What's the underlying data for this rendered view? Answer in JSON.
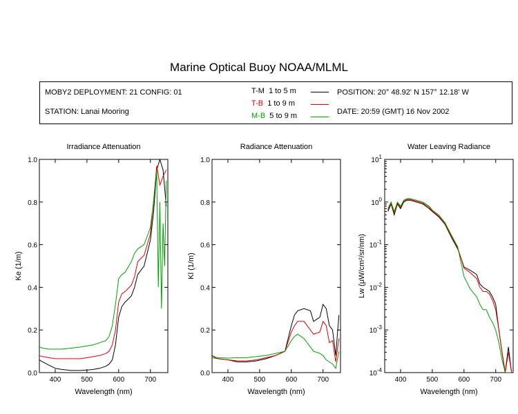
{
  "title": "Marine Optical Buoy NOAA/MLML",
  "info": {
    "deployment": "MOBY2 DEPLOYMENT: 21 CONFIG: 01",
    "station": "STATION: Lanai Mooring",
    "position": "POSITION: 20° 48.92' N   157° 12.18' W",
    "date": "DATE: 20:59 (GMT) 16 Nov 2002",
    "legend": [
      {
        "code": "T-M",
        "range": "1 to 5  m",
        "color": "#000000"
      },
      {
        "code": "T-B",
        "range": "1 to 9  m",
        "color": "#e00000"
      },
      {
        "code": "M-B",
        "range": "5 to 9  m",
        "color": "#00a000"
      }
    ]
  },
  "chart_data": [
    {
      "type": "line",
      "title": "Irradiance Attenuation",
      "xlabel": "Wavelength (nm)",
      "ylabel": "Ke  (1/m)",
      "xlim": [
        350,
        755
      ],
      "ylim": [
        0,
        1.0
      ],
      "xticks": [
        400,
        500,
        600,
        700
      ],
      "yticks": [
        0,
        0.2,
        0.4,
        0.6,
        0.8,
        1.0
      ],
      "ytick_labels": [
        "0.0",
        "0.2",
        "0.4",
        "0.6",
        "0.8",
        "1.0"
      ],
      "series": [
        {
          "name": "T-M",
          "color": "#000000",
          "x": [
            350,
            360,
            380,
            400,
            420,
            450,
            480,
            500,
            520,
            540,
            560,
            570,
            580,
            590,
            600,
            610,
            620,
            640,
            650,
            660,
            680,
            700,
            710,
            720,
            730,
            740,
            750
          ],
          "y": [
            0.06,
            0.05,
            0.035,
            0.02,
            0.015,
            0.01,
            0.01,
            0.012,
            0.015,
            0.02,
            0.03,
            0.04,
            0.06,
            0.13,
            0.26,
            0.31,
            0.33,
            0.36,
            0.4,
            0.46,
            0.5,
            0.62,
            0.75,
            0.95,
            1.0,
            0.95,
            0.78
          ]
        },
        {
          "name": "T-B",
          "color": "#e00000",
          "x": [
            350,
            360,
            380,
            400,
            420,
            450,
            480,
            500,
            520,
            540,
            560,
            570,
            580,
            590,
            600,
            610,
            620,
            640,
            650,
            660,
            680,
            700,
            710,
            720,
            730,
            740,
            750
          ],
          "y": [
            0.08,
            0.075,
            0.07,
            0.065,
            0.065,
            0.065,
            0.065,
            0.07,
            0.075,
            0.08,
            0.09,
            0.1,
            0.13,
            0.2,
            0.33,
            0.37,
            0.38,
            0.41,
            0.45,
            0.52,
            0.55,
            0.65,
            0.8,
            0.97,
            0.88,
            0.92,
            0.95
          ]
        },
        {
          "name": "M-B",
          "color": "#00a000",
          "x": [
            350,
            360,
            380,
            400,
            420,
            450,
            480,
            500,
            520,
            540,
            560,
            570,
            580,
            590,
            600,
            610,
            620,
            640,
            650,
            660,
            680,
            700,
            710,
            720,
            725,
            730,
            735,
            740,
            745,
            750
          ],
          "y": [
            0.12,
            0.115,
            0.11,
            0.11,
            0.11,
            0.115,
            0.12,
            0.125,
            0.13,
            0.14,
            0.15,
            0.17,
            0.22,
            0.32,
            0.44,
            0.46,
            0.47,
            0.52,
            0.56,
            0.58,
            0.6,
            0.68,
            0.8,
            0.95,
            0.4,
            0.8,
            0.3,
            0.7,
            0.5,
            0.9
          ]
        }
      ]
    },
    {
      "type": "line",
      "title": "Radiance Attenuation",
      "xlabel": "Wavelength (nm)",
      "ylabel": "Kl  (1/m)",
      "xlim": [
        350,
        755
      ],
      "ylim": [
        0,
        1.0
      ],
      "xticks": [
        400,
        500,
        600,
        700
      ],
      "yticks": [
        0,
        0.2,
        0.4,
        0.6,
        0.8,
        1.0
      ],
      "ytick_labels": [
        "0.0",
        "0.2",
        "0.4",
        "0.6",
        "0.8",
        "1.0"
      ],
      "series": [
        {
          "name": "T-M",
          "color": "#000000",
          "x": [
            350,
            370,
            400,
            430,
            460,
            490,
            520,
            550,
            580,
            600,
            610,
            620,
            640,
            660,
            670,
            690,
            700,
            710,
            720,
            730,
            740,
            750
          ],
          "y": [
            0.08,
            0.065,
            0.06,
            0.05,
            0.05,
            0.055,
            0.065,
            0.08,
            0.1,
            0.22,
            0.27,
            0.29,
            0.3,
            0.29,
            0.24,
            0.26,
            0.32,
            0.3,
            0.22,
            0.2,
            0.08,
            0.27
          ]
        },
        {
          "name": "T-B",
          "color": "#e00000",
          "x": [
            350,
            370,
            400,
            430,
            460,
            490,
            520,
            550,
            580,
            600,
            610,
            620,
            640,
            660,
            670,
            690,
            700,
            710,
            720,
            730,
            740,
            750
          ],
          "y": [
            0.07,
            0.065,
            0.06,
            0.055,
            0.055,
            0.06,
            0.07,
            0.08,
            0.1,
            0.19,
            0.22,
            0.24,
            0.24,
            0.2,
            0.18,
            0.19,
            0.24,
            0.22,
            0.14,
            0.15,
            0.05,
            0.16
          ]
        },
        {
          "name": "M-B",
          "color": "#00a000",
          "x": [
            350,
            370,
            400,
            430,
            460,
            490,
            520,
            550,
            580,
            600,
            610,
            620,
            640,
            660,
            670,
            690,
            700,
            710,
            720,
            730,
            740,
            750
          ],
          "y": [
            0.07,
            0.07,
            0.068,
            0.07,
            0.07,
            0.075,
            0.08,
            0.09,
            0.1,
            0.15,
            0.17,
            0.18,
            0.16,
            0.12,
            0.1,
            0.09,
            0.08,
            0.06,
            0.05,
            0.04,
            0.02,
            0.1
          ]
        }
      ]
    },
    {
      "type": "line",
      "title": "Water Leaving Radiance",
      "xlabel": "Wavelength (nm)",
      "ylabel": "Lw  (μW/cm²/sr/nm)",
      "xlim": [
        350,
        755
      ],
      "ylim": [
        0.0001,
        10
      ],
      "yscale": "log",
      "xticks": [
        400,
        500,
        600,
        700
      ],
      "ytick_exponents": [
        "1",
        "0",
        "-1",
        "-2",
        "-3",
        "-4"
      ],
      "series": [
        {
          "name": "T-M",
          "color": "#000000",
          "x": [
            360,
            370,
            380,
            390,
            400,
            410,
            420,
            430,
            450,
            470,
            490,
            500,
            520,
            540,
            560,
            580,
            590,
            600,
            620,
            640,
            650,
            660,
            670,
            680,
            690,
            700,
            710,
            720,
            730,
            740,
            750
          ],
          "y": [
            0.6,
            0.9,
            0.5,
            0.9,
            0.7,
            1.0,
            1.1,
            1.1,
            1.0,
            0.9,
            0.7,
            0.6,
            0.45,
            0.3,
            0.15,
            0.08,
            0.05,
            0.03,
            0.025,
            0.02,
            0.012,
            0.01,
            0.009,
            0.008,
            0.006,
            0.004,
            0.001,
            0.0003,
            0.0001,
            0.0004,
            0.0001
          ]
        },
        {
          "name": "T-B",
          "color": "#e00000",
          "x": [
            360,
            370,
            380,
            390,
            400,
            410,
            420,
            430,
            450,
            470,
            490,
            500,
            520,
            540,
            560,
            580,
            590,
            600,
            620,
            640,
            650,
            660,
            670,
            680,
            690,
            700,
            710,
            720,
            730,
            740,
            750
          ],
          "y": [
            0.65,
            0.95,
            0.55,
            0.95,
            0.75,
            1.05,
            1.15,
            1.15,
            1.05,
            0.95,
            0.75,
            0.62,
            0.47,
            0.31,
            0.16,
            0.085,
            0.05,
            0.028,
            0.022,
            0.016,
            0.01,
            0.008,
            0.008,
            0.007,
            0.005,
            0.003,
            0.001,
            0.0003,
            0.0001,
            0.0003,
            0.0001
          ]
        },
        {
          "name": "M-B",
          "color": "#00a000",
          "x": [
            360,
            370,
            380,
            390,
            400,
            410,
            420,
            430,
            450,
            470,
            490,
            500,
            520,
            540,
            560,
            580,
            590,
            600,
            620,
            640,
            650,
            660,
            670,
            680,
            690,
            700,
            710,
            720,
            730,
            740,
            750
          ],
          "y": [
            0.7,
            1.0,
            0.6,
            1.0,
            0.8,
            1.1,
            1.2,
            1.2,
            1.1,
            1.0,
            0.8,
            0.65,
            0.5,
            0.33,
            0.17,
            0.09,
            0.04,
            0.018,
            0.009,
            0.006,
            0.004,
            0.003,
            0.003,
            0.002,
            0.0015,
            0.001,
            0.0005,
            0.0002,
            0.0001,
            0.0001,
            0.0001
          ]
        }
      ]
    }
  ]
}
